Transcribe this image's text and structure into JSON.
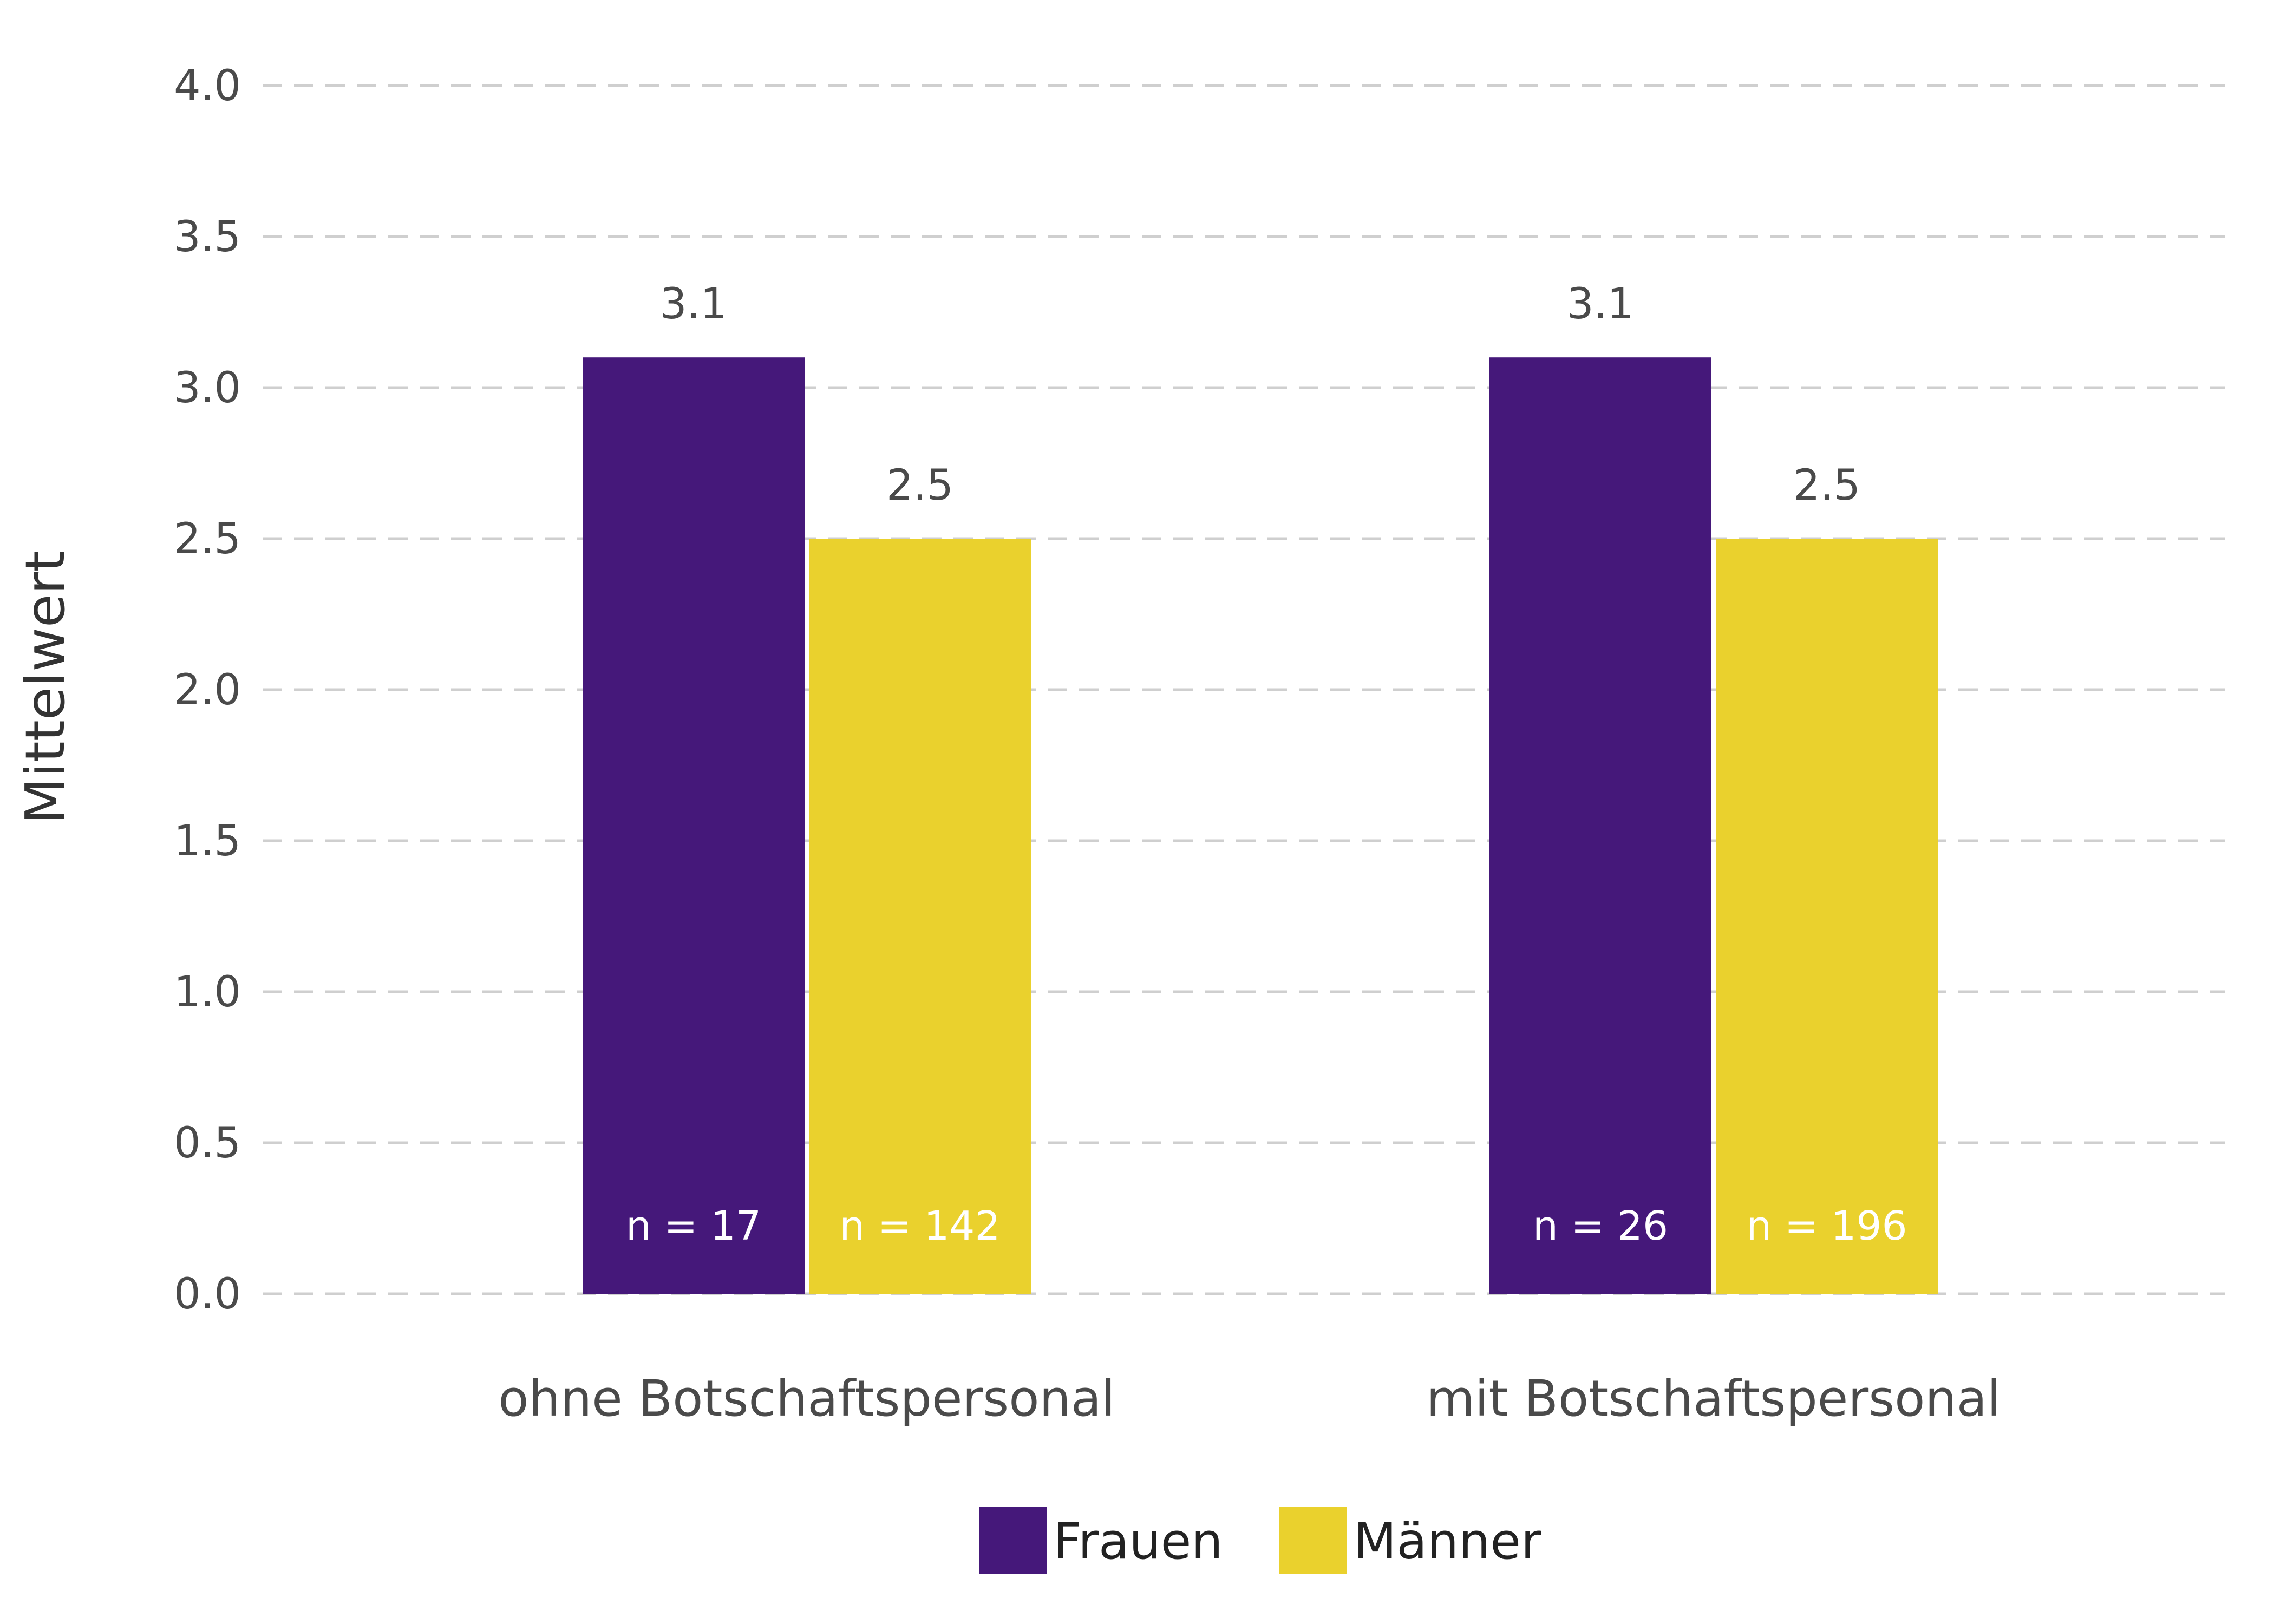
{
  "chart_data": {
    "type": "bar",
    "title": "",
    "xlabel": "",
    "ylabel": "Mittelwert",
    "ylim": [
      0,
      4
    ],
    "yticks": [
      "0.0",
      "0.5",
      "1.0",
      "1.5",
      "2.0",
      "2.5",
      "3.0",
      "3.5",
      "4.0"
    ],
    "ytick_values": [
      0,
      0.5,
      1,
      1.5,
      2,
      2.5,
      3,
      3.5,
      4
    ],
    "grid": true,
    "legend_position": "bottom",
    "categories": [
      "ohne Botschaftspersonal",
      "mit Botschaftspersonal"
    ],
    "series": [
      {
        "name": "Frauen",
        "color": "#45187a",
        "values": [
          3.1,
          3.1
        ],
        "value_labels": [
          "3.1",
          "3.1"
        ],
        "n_labels": [
          "n = 17",
          "n = 26"
        ]
      },
      {
        "name": "Männer",
        "color": "#ead12d",
        "values": [
          2.5,
          2.5
        ],
        "value_labels": [
          "2.5",
          "2.5"
        ],
        "n_labels": [
          "n = 142",
          "n = 196"
        ]
      }
    ]
  }
}
